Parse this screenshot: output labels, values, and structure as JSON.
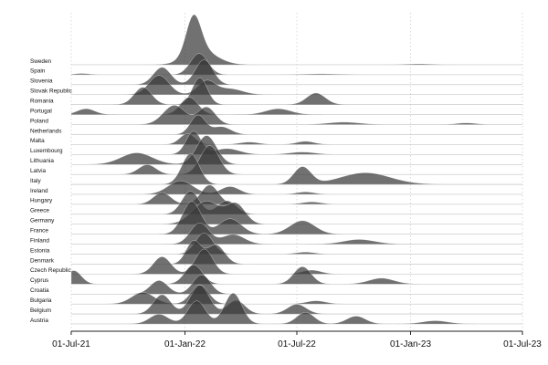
{
  "chart_data": {
    "type": "ridgeline",
    "title": "",
    "xlabel": "",
    "ylabel": "",
    "x_ticks": [
      "01-Jul-21",
      "01-Jan-22",
      "01-Jul-22",
      "01-Jan-23",
      "01-Jul-23"
    ],
    "xlim": [
      "2021-07-01",
      "2023-07-01"
    ],
    "x_unit": "date",
    "grid": true,
    "fill_color": "#3a3a3a",
    "series": [
      {
        "name": "Sweden",
        "peaks": [
          {
            "date": "2022-01-15",
            "height": 1.0,
            "sd_days": 12
          },
          {
            "date": "2022-01-28",
            "height": 0.35,
            "sd_days": 25
          },
          {
            "date": "2023-01-15",
            "height": 0.02,
            "sd_days": 20
          }
        ]
      },
      {
        "name": "Spain",
        "peaks": [
          {
            "date": "2022-01-24",
            "height": 0.55,
            "sd_days": 14
          },
          {
            "date": "2021-07-18",
            "height": 0.03,
            "sd_days": 12
          },
          {
            "date": "2022-08-10",
            "height": 0.02,
            "sd_days": 30
          }
        ]
      },
      {
        "name": "Slovenia",
        "peaks": [
          {
            "date": "2021-11-25",
            "height": 0.45,
            "sd_days": 14
          },
          {
            "date": "2022-02-01",
            "height": 0.65,
            "sd_days": 14
          }
        ]
      },
      {
        "name": "Slovak Republic",
        "peaks": [
          {
            "date": "2021-11-20",
            "height": 0.5,
            "sd_days": 16
          },
          {
            "date": "2022-02-05",
            "height": 0.35,
            "sd_days": 14
          },
          {
            "date": "2022-03-15",
            "height": 0.15,
            "sd_days": 20
          }
        ]
      },
      {
        "name": "Romania",
        "peaks": [
          {
            "date": "2021-10-25",
            "height": 0.45,
            "sd_days": 14
          },
          {
            "date": "2022-01-25",
            "height": 0.7,
            "sd_days": 12
          },
          {
            "date": "2022-08-01",
            "height": 0.3,
            "sd_days": 15
          }
        ]
      },
      {
        "name": "Portugal",
        "peaks": [
          {
            "date": "2022-01-08",
            "height": 0.45,
            "sd_days": 14
          },
          {
            "date": "2021-07-25",
            "height": 0.15,
            "sd_days": 14
          },
          {
            "date": "2022-06-01",
            "height": 0.15,
            "sd_days": 20
          }
        ]
      },
      {
        "name": "Poland",
        "peaks": [
          {
            "date": "2021-12-15",
            "height": 0.5,
            "sd_days": 18
          },
          {
            "date": "2022-02-05",
            "height": 0.45,
            "sd_days": 14
          },
          {
            "date": "2022-09-15",
            "height": 0.06,
            "sd_days": 25
          },
          {
            "date": "2023-04-01",
            "height": 0.04,
            "sd_days": 15
          }
        ]
      },
      {
        "name": "Netherlands",
        "peaks": [
          {
            "date": "2022-01-22",
            "height": 0.5,
            "sd_days": 12
          },
          {
            "date": "2022-03-01",
            "height": 0.2,
            "sd_days": 15
          }
        ]
      },
      {
        "name": "Malta",
        "peaks": [
          {
            "date": "2022-01-05",
            "height": 0.28,
            "sd_days": 12
          },
          {
            "date": "2022-04-15",
            "height": 0.06,
            "sd_days": 15
          },
          {
            "date": "2022-07-15",
            "height": 0.08,
            "sd_days": 14
          }
        ]
      },
      {
        "name": "Luxembourg",
        "peaks": [
          {
            "date": "2022-01-15",
            "height": 0.6,
            "sd_days": 12
          },
          {
            "date": "2022-03-10",
            "height": 0.15,
            "sd_days": 20
          },
          {
            "date": "2022-07-10",
            "height": 0.06,
            "sd_days": 20
          }
        ]
      },
      {
        "name": "Lithuania",
        "peaks": [
          {
            "date": "2021-10-15",
            "height": 0.3,
            "sd_days": 25
          },
          {
            "date": "2022-02-05",
            "height": 0.75,
            "sd_days": 16
          }
        ]
      },
      {
        "name": "Latvia",
        "peaks": [
          {
            "date": "2021-11-01",
            "height": 0.25,
            "sd_days": 14
          },
          {
            "date": "2022-02-10",
            "height": 0.75,
            "sd_days": 15
          }
        ]
      },
      {
        "name": "Italy",
        "peaks": [
          {
            "date": "2022-01-10",
            "height": 0.8,
            "sd_days": 14
          },
          {
            "date": "2022-07-10",
            "height": 0.45,
            "sd_days": 14
          },
          {
            "date": "2022-10-20",
            "height": 0.3,
            "sd_days": 40
          }
        ]
      },
      {
        "name": "Ireland",
        "peaks": [
          {
            "date": "2021-12-25",
            "height": 0.35,
            "sd_days": 20
          },
          {
            "date": "2022-03-15",
            "height": 0.2,
            "sd_days": 15
          },
          {
            "date": "2022-07-15",
            "height": 0.06,
            "sd_days": 14
          }
        ]
      },
      {
        "name": "Hungary",
        "peaks": [
          {
            "date": "2021-11-25",
            "height": 0.3,
            "sd_days": 14
          },
          {
            "date": "2022-02-10",
            "height": 0.5,
            "sd_days": 14
          },
          {
            "date": "2022-07-25",
            "height": 0.06,
            "sd_days": 15
          }
        ]
      },
      {
        "name": "Greece",
        "peaks": [
          {
            "date": "2022-01-10",
            "height": 0.6,
            "sd_days": 14
          },
          {
            "date": "2022-03-10",
            "height": 0.35,
            "sd_days": 15
          }
        ]
      },
      {
        "name": "Germany",
        "peaks": [
          {
            "date": "2022-02-05",
            "height": 0.6,
            "sd_days": 22
          },
          {
            "date": "2022-03-25",
            "height": 0.5,
            "sd_days": 15
          }
        ]
      },
      {
        "name": "France",
        "peaks": [
          {
            "date": "2022-01-12",
            "height": 0.85,
            "sd_days": 15
          },
          {
            "date": "2022-03-15",
            "height": 0.4,
            "sd_days": 18
          },
          {
            "date": "2022-07-10",
            "height": 0.35,
            "sd_days": 20
          }
        ]
      },
      {
        "name": "Finland",
        "peaks": [
          {
            "date": "2022-01-25",
            "height": 0.55,
            "sd_days": 15
          },
          {
            "date": "2022-03-20",
            "height": 0.25,
            "sd_days": 18
          },
          {
            "date": "2022-10-10",
            "height": 0.12,
            "sd_days": 25
          }
        ]
      },
      {
        "name": "Estonia",
        "peaks": [
          {
            "date": "2022-02-01",
            "height": 0.55,
            "sd_days": 14
          },
          {
            "date": "2022-07-15",
            "height": 0.05,
            "sd_days": 15
          }
        ]
      },
      {
        "name": "Denmark",
        "peaks": [
          {
            "date": "2022-01-15",
            "height": 0.6,
            "sd_days": 12
          },
          {
            "date": "2022-02-20",
            "height": 0.5,
            "sd_days": 14
          }
        ]
      },
      {
        "name": "Czech Republic",
        "peaks": [
          {
            "date": "2021-11-25",
            "height": 0.45,
            "sd_days": 14
          },
          {
            "date": "2022-02-01",
            "height": 0.65,
            "sd_days": 14
          },
          {
            "date": "2022-07-25",
            "height": 0.1,
            "sd_days": 15
          }
        ]
      },
      {
        "name": "Cyprus",
        "peaks": [
          {
            "date": "2021-07-05",
            "height": 0.35,
            "sd_days": 12
          },
          {
            "date": "2022-01-15",
            "height": 0.5,
            "sd_days": 14
          },
          {
            "date": "2022-07-10",
            "height": 0.45,
            "sd_days": 14
          },
          {
            "date": "2022-11-15",
            "height": 0.15,
            "sd_days": 20
          }
        ]
      },
      {
        "name": "Croatia",
        "peaks": [
          {
            "date": "2021-11-20",
            "height": 0.35,
            "sd_days": 14
          },
          {
            "date": "2022-01-28",
            "height": 0.5,
            "sd_days": 14
          }
        ]
      },
      {
        "name": "Bulgaria",
        "peaks": [
          {
            "date": "2021-10-25",
            "height": 0.3,
            "sd_days": 18
          },
          {
            "date": "2022-01-25",
            "height": 0.5,
            "sd_days": 14
          },
          {
            "date": "2022-08-01",
            "height": 0.08,
            "sd_days": 15
          }
        ]
      },
      {
        "name": "Belgium",
        "peaks": [
          {
            "date": "2021-11-25",
            "height": 0.5,
            "sd_days": 14
          },
          {
            "date": "2022-01-25",
            "height": 0.75,
            "sd_days": 15
          },
          {
            "date": "2022-03-25",
            "height": 0.35,
            "sd_days": 14
          },
          {
            "date": "2022-07-01",
            "height": 0.25,
            "sd_days": 15
          }
        ]
      },
      {
        "name": "Austria",
        "peaks": [
          {
            "date": "2021-11-20",
            "height": 0.25,
            "sd_days": 15
          },
          {
            "date": "2022-01-20",
            "height": 0.6,
            "sd_days": 14
          },
          {
            "date": "2022-03-20",
            "height": 0.8,
            "sd_days": 14
          },
          {
            "date": "2022-07-15",
            "height": 0.3,
            "sd_days": 14
          },
          {
            "date": "2022-10-05",
            "height": 0.2,
            "sd_days": 15
          },
          {
            "date": "2023-02-10",
            "height": 0.08,
            "sd_days": 20
          }
        ]
      }
    ]
  }
}
